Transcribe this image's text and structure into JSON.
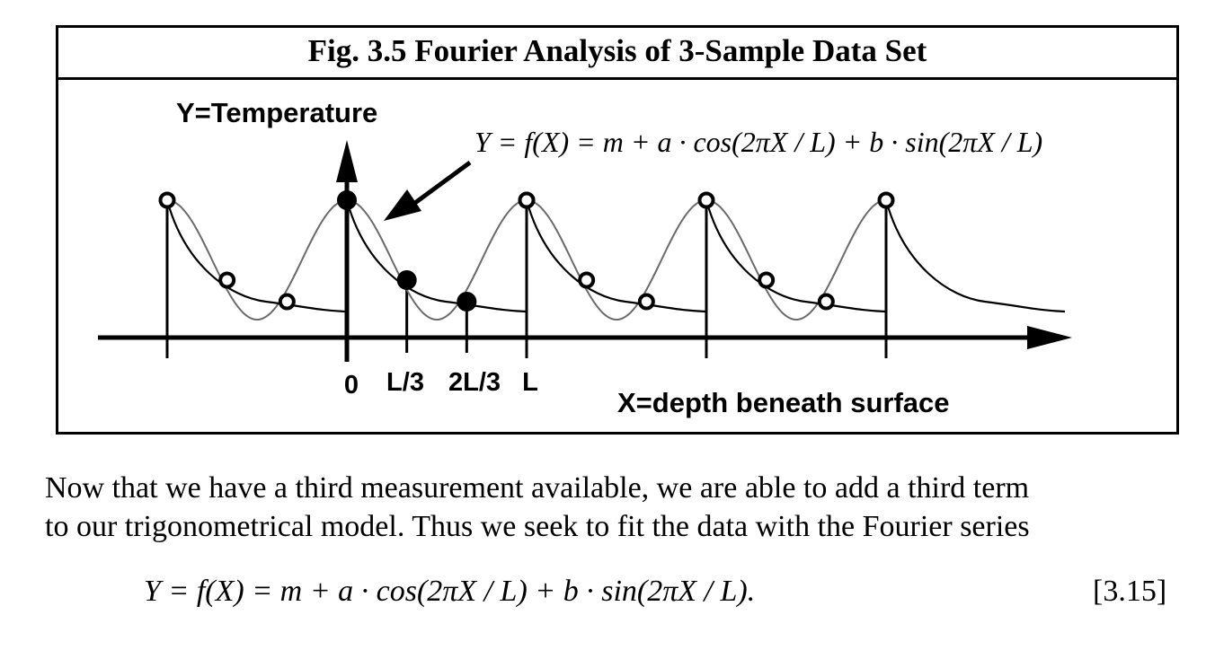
{
  "figure": {
    "title": "Fig. 3.5  Fourier Analysis of 3-Sample Data Set",
    "y_axis_label": "Y=Temperature",
    "x_axis_label": "X=depth beneath surface",
    "x_ticks": [
      "0",
      "L/3",
      "2L/3",
      "L"
    ],
    "equation": "Y = f(X) = m + a · cos(2πX / L) + b · sin(2πX / L)",
    "samples_per_period": 3,
    "periods_shown": 5
  },
  "body": {
    "line1": "Now that we have a third measurement available, we are able to add a third term",
    "line2": "to our trigonometrical model.  Thus we seek to fit the data with the Fourier series"
  },
  "equation": {
    "text": "Y = f(X) = m + a · cos(2πX / L) + b · sin(2πX / L).",
    "number": "[3.15]"
  }
}
